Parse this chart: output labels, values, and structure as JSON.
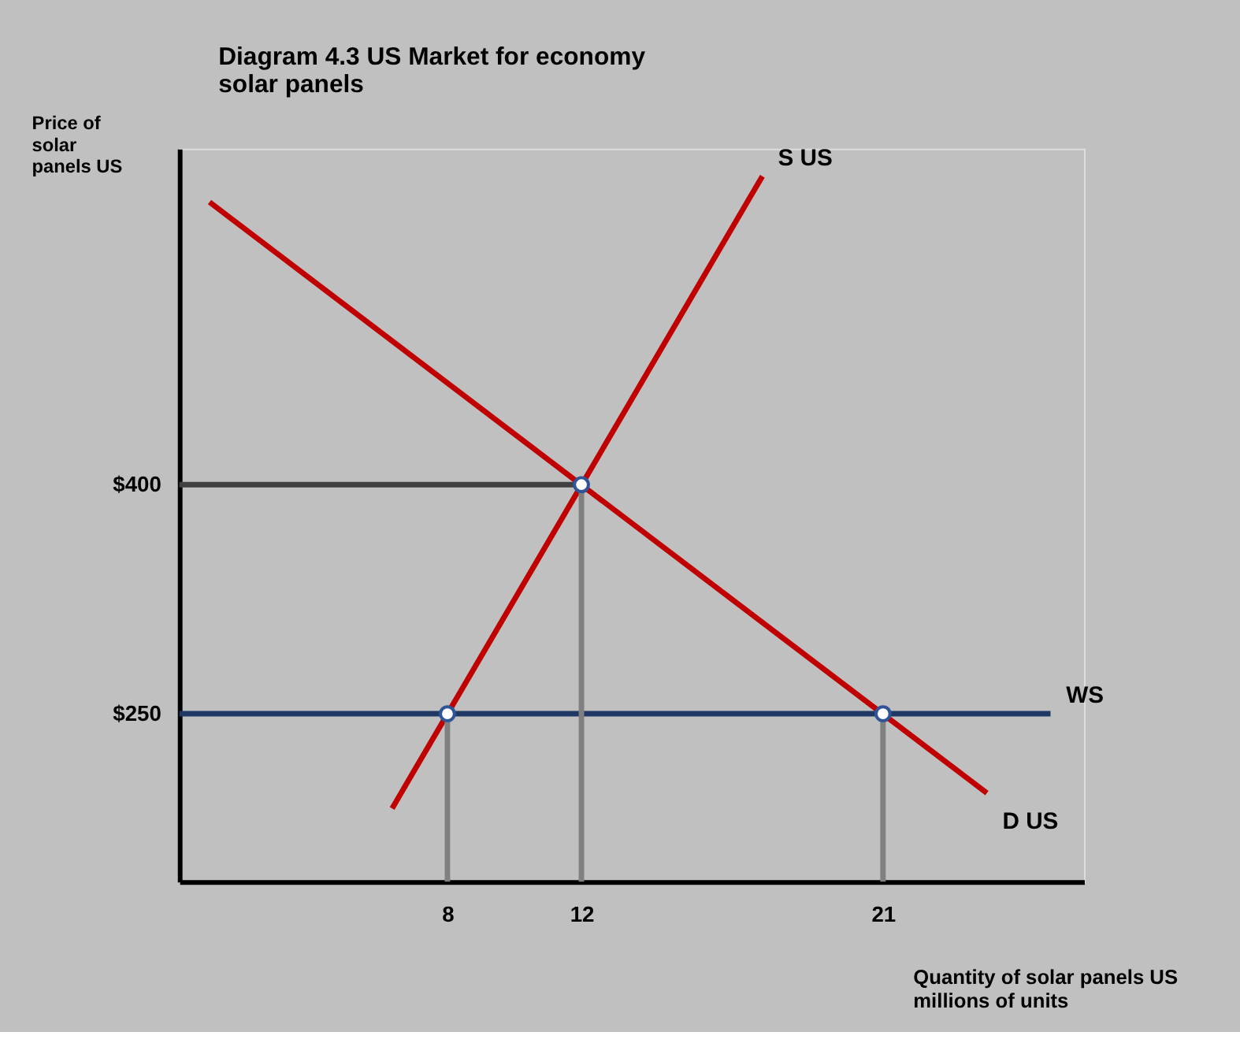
{
  "chart_data": {
    "type": "line",
    "title": "Diagram 4.3 US Market for economy solar panels",
    "xlabel": "Quantity of solar panels US millions of units",
    "ylabel": "Price of solar panels US",
    "xlim": [
      0,
      27
    ],
    "ylim": [
      140,
      620
    ],
    "xticks": [
      8,
      12,
      21
    ],
    "yticks": [
      {
        "value": 250,
        "label": "$250"
      },
      {
        "value": 400,
        "label": "$400"
      }
    ],
    "grid": false,
    "series": [
      {
        "name": "S US",
        "color": "#c00000",
        "x": [
          6.35,
          17.4
        ],
        "values": [
          188,
          602
        ]
      },
      {
        "name": "D US",
        "color": "#c00000",
        "x": [
          0.9,
          24.1
        ],
        "values": [
          585,
          198
        ]
      },
      {
        "name": "WS",
        "color": "#1f3864",
        "x": [
          0,
          26
        ],
        "values": [
          250,
          250
        ]
      },
      {
        "color": "#404040",
        "x": [
          0,
          12
        ],
        "values": [
          400,
          400
        ]
      },
      {
        "color": "#808080",
        "x": [
          8,
          8
        ],
        "values": [
          140,
          250
        ]
      },
      {
        "color": "#808080",
        "x": [
          12,
          12
        ],
        "values": [
          140,
          400
        ]
      },
      {
        "color": "#808080",
        "x": [
          21,
          21
        ],
        "values": [
          140,
          250
        ]
      },
      {
        "type": "scatter",
        "color": "#ffffff",
        "x": [
          8,
          12,
          21
        ],
        "values": [
          250,
          400,
          250
        ]
      }
    ]
  }
}
